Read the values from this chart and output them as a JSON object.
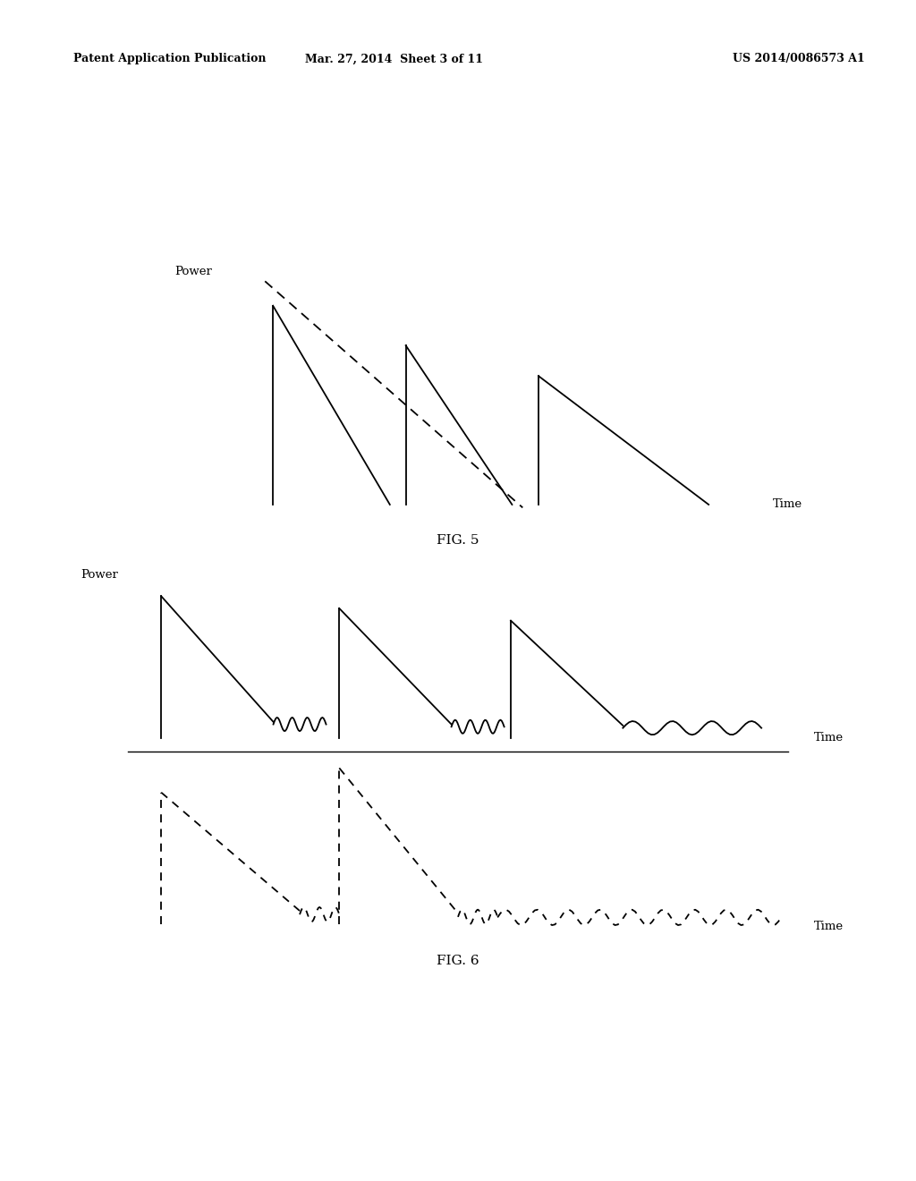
{
  "bg_color": "#ffffff",
  "text_color": "#000000",
  "header_left": "Patent Application Publication",
  "header_mid": "Mar. 27, 2014  Sheet 3 of 11",
  "header_right": "US 2014/0086573 A1",
  "fig5_label": "FIG. 5",
  "fig6_label": "FIG. 6",
  "power_label": "Power",
  "time_label": "Time",
  "line_color": "#000000"
}
